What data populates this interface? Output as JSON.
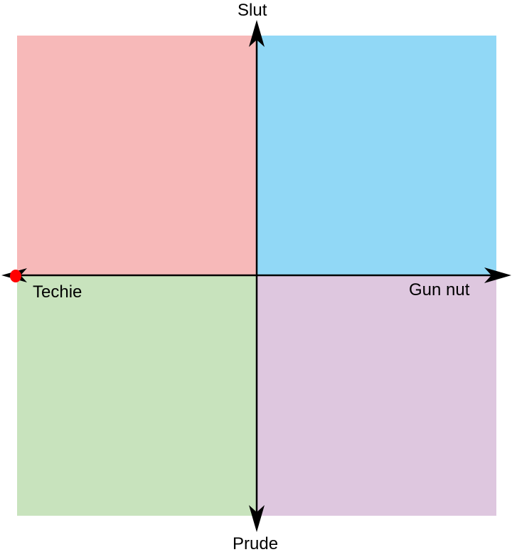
{
  "axes": {
    "top_label": "Slut",
    "bottom_label": "Prude",
    "left_label": "Techie",
    "right_label": "Gun nut"
  },
  "quadrants": {
    "top_left_color": "#f7b9b9",
    "top_right_color": "#91d8f6",
    "bottom_left_color": "#c8e3bd",
    "bottom_right_color": "#dec7df"
  },
  "colors": {
    "axis": "#000000",
    "marker": "#ff0000"
  }
}
